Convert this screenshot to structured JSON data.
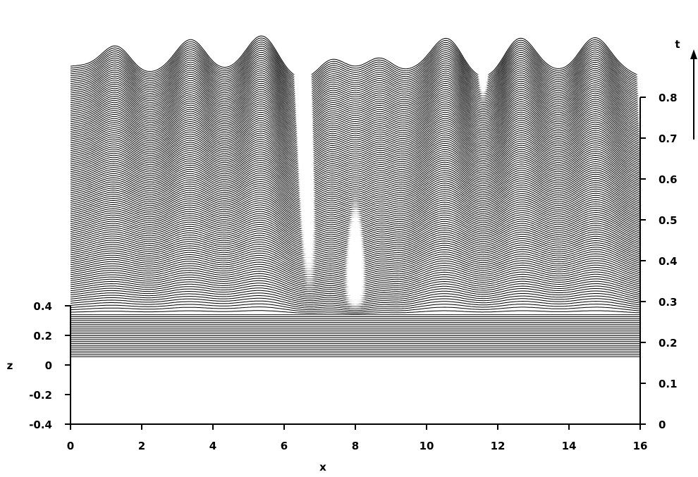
{
  "chart_data": {
    "type": "waterfall",
    "xlabel": "x",
    "zlabel": "z",
    "tlabel": "t",
    "x_range": [
      0,
      16
    ],
    "x_ticks": [
      "0",
      "2",
      "4",
      "6",
      "8",
      "10",
      "12",
      "14",
      "16"
    ],
    "z_range": [
      -0.4,
      0.4
    ],
    "z_ticks": [
      "-0.4",
      "-0.2",
      "0",
      "0.2",
      "0.4"
    ],
    "t_range": [
      0,
      0.8
    ],
    "t_ticks": [
      "0",
      "0.1",
      "0.2",
      "0.3",
      "0.4",
      "0.5",
      "0.6",
      "0.7",
      "0.8"
    ],
    "grid": false,
    "legend": "none",
    "line_color": "#000000",
    "fill_color": "#ffffff"
  }
}
